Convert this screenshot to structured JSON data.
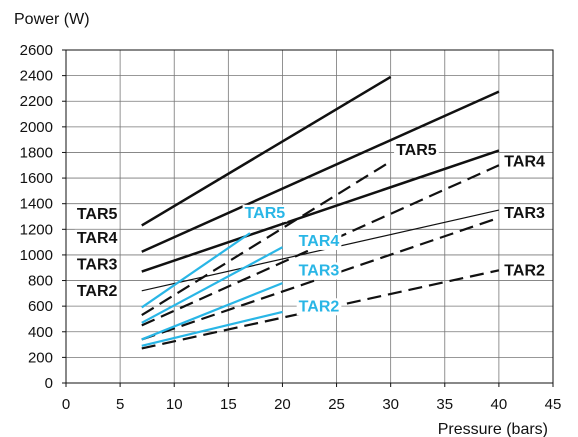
{
  "chart_data": {
    "type": "line",
    "ylabel": "Power (W)",
    "xlabel": "Pressure (bars)",
    "xlim": [
      0,
      45
    ],
    "ylim": [
      0,
      2600
    ],
    "x_ticks": [
      0,
      5,
      10,
      15,
      20,
      25,
      30,
      35,
      40,
      45
    ],
    "y_ticks": [
      0,
      200,
      400,
      600,
      800,
      1000,
      1200,
      1400,
      1600,
      1800,
      2000,
      2200,
      2400,
      2600
    ],
    "grid": true,
    "colors": {
      "black": "#111111",
      "blue": "#29b6e6",
      "grid": "#777777"
    },
    "series": [
      {
        "name": "TAR5",
        "group": "black",
        "style": "solid",
        "width": 2.5,
        "points": [
          [
            7,
            1230
          ],
          [
            30,
            2390
          ]
        ]
      },
      {
        "name": "TAR4",
        "group": "black",
        "style": "solid",
        "width": 2.5,
        "points": [
          [
            7,
            1025
          ],
          [
            40,
            2275
          ]
        ]
      },
      {
        "name": "TAR3",
        "group": "black",
        "style": "solid",
        "width": 2.5,
        "points": [
          [
            7,
            870
          ],
          [
            40,
            1815
          ]
        ]
      },
      {
        "name": "TAR2",
        "group": "black",
        "style": "solid",
        "width": 1.2,
        "points": [
          [
            7,
            720
          ],
          [
            40,
            1350
          ]
        ]
      },
      {
        "name": "TAR5",
        "group": "black",
        "style": "dashed",
        "width": 2.2,
        "points": [
          [
            7,
            530
          ],
          [
            30,
            1730
          ]
        ]
      },
      {
        "name": "TAR4",
        "group": "black",
        "style": "dashed",
        "width": 2.2,
        "points": [
          [
            7,
            450
          ],
          [
            40,
            1700
          ]
        ]
      },
      {
        "name": "TAR3",
        "group": "black",
        "style": "dashed",
        "width": 2.2,
        "points": [
          [
            7,
            340
          ],
          [
            40,
            1290
          ]
        ]
      },
      {
        "name": "TAR2",
        "group": "black",
        "style": "dashed",
        "width": 2.2,
        "points": [
          [
            7,
            270
          ],
          [
            40,
            880
          ]
        ]
      },
      {
        "name": "TAR5",
        "group": "blue",
        "style": "solid",
        "width": 2.2,
        "points": [
          [
            7,
            590
          ],
          [
            17,
            1170
          ]
        ]
      },
      {
        "name": "TAR4",
        "group": "blue",
        "style": "solid",
        "width": 2.2,
        "points": [
          [
            7,
            470
          ],
          [
            20,
            1060
          ]
        ]
      },
      {
        "name": "TAR3",
        "group": "blue",
        "style": "solid",
        "width": 2.2,
        "points": [
          [
            7,
            340
          ],
          [
            20,
            780
          ]
        ]
      },
      {
        "name": "TAR2",
        "group": "blue",
        "style": "solid",
        "width": 2.2,
        "points": [
          [
            7,
            290
          ],
          [
            20,
            555
          ]
        ]
      }
    ],
    "annotations": [
      {
        "text": "TAR5",
        "group": "black",
        "x": 1,
        "y": 1280
      },
      {
        "text": "TAR4",
        "group": "black",
        "x": 1,
        "y": 1095
      },
      {
        "text": "TAR3",
        "group": "black",
        "x": 1,
        "y": 885
      },
      {
        "text": "TAR2",
        "group": "black",
        "x": 1,
        "y": 680
      },
      {
        "text": "TAR5",
        "group": "black",
        "x": 30.5,
        "y": 1780
      },
      {
        "text": "TAR4",
        "group": "black",
        "x": 40.5,
        "y": 1690
      },
      {
        "text": "TAR3",
        "group": "black",
        "x": 40.5,
        "y": 1290
      },
      {
        "text": "TAR2",
        "group": "black",
        "x": 40.5,
        "y": 840
      },
      {
        "text": "TAR5",
        "group": "blue",
        "x": 16.5,
        "y": 1290
      },
      {
        "text": "TAR4",
        "group": "blue",
        "x": 21.5,
        "y": 1070
      },
      {
        "text": "TAR3",
        "group": "blue",
        "x": 21.5,
        "y": 840
      },
      {
        "text": "TAR2",
        "group": "blue",
        "x": 21.5,
        "y": 560
      }
    ]
  }
}
